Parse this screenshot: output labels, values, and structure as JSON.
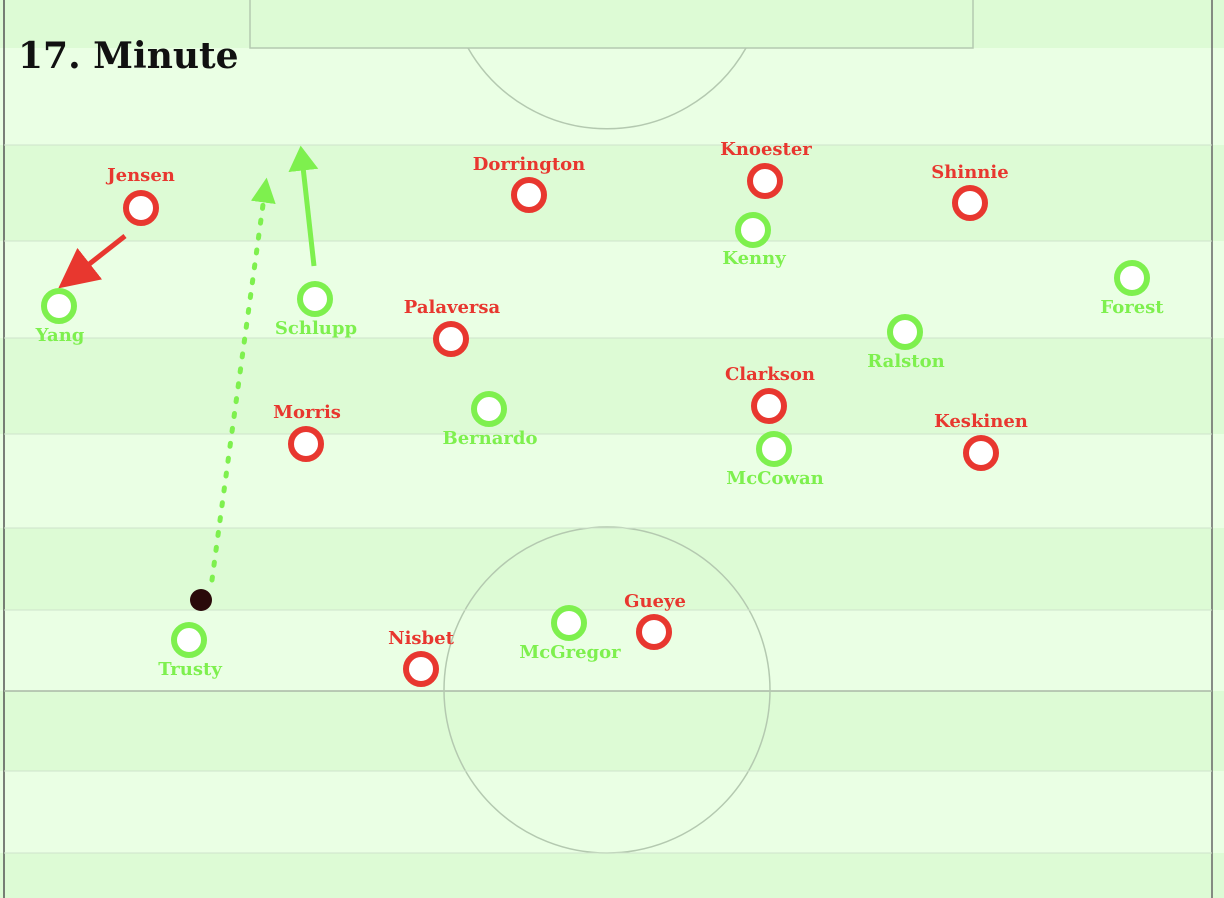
{
  "title": "17. Minute",
  "colors": {
    "red_team": "#e8372f",
    "green_team": "#7ef04e",
    "ball": "#2a0a0a",
    "stripe_light": "#eaffe4",
    "stripe_dark": "#ddfbd5",
    "pitch_lines": "#b4c9b0"
  },
  "red_players": [
    "Jensen",
    "Dorrington",
    "Knoester",
    "Shinnie",
    "Palaversa",
    "Clarkson",
    "Morris",
    "Keskinen",
    "Gueye",
    "Nisbet"
  ],
  "green_players": [
    "Yang",
    "Schlupp",
    "Kenny",
    "Forest",
    "Ralston",
    "Bernardo",
    "McCowan",
    "Trusty",
    "McGregor"
  ],
  "ball_icon": "ball-icon",
  "arrows": [
    {
      "name": "jensen-press-arrow",
      "style": "solid",
      "color": "red"
    },
    {
      "name": "schlupp-run-arrow",
      "style": "solid",
      "color": "green"
    },
    {
      "name": "pass-arrow",
      "style": "dotted",
      "color": "green"
    }
  ]
}
